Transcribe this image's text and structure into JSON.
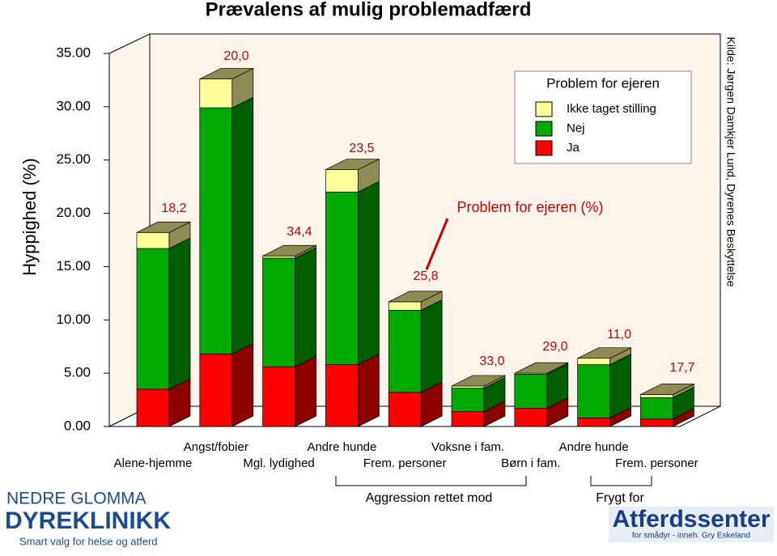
{
  "chart_data": {
    "type": "bar3d_stacked",
    "title": "Prævalens af mulig problemadfærd",
    "y_label": "Hyppighed (%)",
    "source": "Kilde: Jørgen Damkjer Lund, Dyrenes Beskyttelse",
    "legend_title": "Problem for ejeren",
    "annotation": "Problem for ejeren (%)",
    "categories": [
      "Alene-hjemme",
      "Angst/fobier",
      "Mgl. lydighed",
      "Andre hunde",
      "Frem. personer",
      "Voksne i fam.",
      "Børn i fam.",
      "Andre hunde",
      "Frem. personer"
    ],
    "problem_labels": [
      "18,2",
      "20,0",
      "34,4",
      "23,5",
      "25,8",
      "33,0",
      "29,0",
      "11,0",
      "17,7"
    ],
    "groups": [
      "Aggression rettet mod",
      "Frygt for"
    ],
    "series": [
      {
        "name": "Ja",
        "color": "#ff0000",
        "values": [
          3.5,
          6.8,
          5.6,
          5.8,
          3.2,
          1.4,
          1.7,
          0.8,
          0.7
        ]
      },
      {
        "name": "Nej",
        "color": "#00aa00",
        "values": [
          13.2,
          23.1,
          10.2,
          16.2,
          7.7,
          2.2,
          3.2,
          5.0,
          2.0
        ]
      },
      {
        "name": "Ikke taget stilling",
        "color": "#ffff99",
        "values": [
          1.5,
          2.7,
          0.2,
          2.1,
          0.8,
          0.2,
          0.1,
          0.6,
          0.3
        ]
      }
    ],
    "ylim": [
      0,
      35
    ],
    "yticks": [
      {
        "value": 0,
        "label": "0.00"
      },
      {
        "value": 5,
        "label": "5.00"
      },
      {
        "value": 10,
        "label": "10.00"
      },
      {
        "value": 15,
        "label": "15.00"
      },
      {
        "value": 20,
        "label": "20.00"
      },
      {
        "value": 25,
        "label": "25.00"
      },
      {
        "value": 30,
        "label": "30.00"
      },
      {
        "value": 35,
        "label": "35.00"
      }
    ]
  },
  "logos": {
    "left_top": "NEDRE GLOMMA",
    "left_main": "DYREKLINIKK",
    "left_tag": "Smart valg for helse og atferd",
    "right_main": "Atferdssenter",
    "right_tag": "for smådyr - inneh. Gry Eskeland"
  }
}
